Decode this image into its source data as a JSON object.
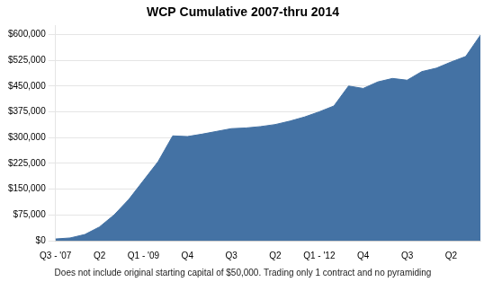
{
  "chart_data": {
    "type": "area",
    "title": "WCP Cumulative 2007-thru 2014",
    "subtitle": "Does not include original starting capital of $50,000. Trading only 1 contract and no pyramiding",
    "categories": [
      "Q3 - '07",
      null,
      null,
      "Q2",
      null,
      null,
      "Q1 - '09",
      null,
      null,
      "Q4",
      null,
      null,
      "Q3",
      null,
      null,
      "Q2",
      null,
      null,
      "Q1 - '12",
      null,
      null,
      "Q4",
      null,
      null,
      "Q3",
      null,
      null,
      "Q2",
      null,
      null
    ],
    "values": [
      5000,
      8000,
      18000,
      40000,
      75000,
      120000,
      175000,
      230000,
      305000,
      303000,
      310000,
      318000,
      326000,
      328000,
      332000,
      338000,
      348000,
      360000,
      375000,
      392000,
      450000,
      443000,
      462000,
      472000,
      467000,
      492000,
      502000,
      520000,
      536000,
      598000
    ],
    "color": "#4472a4",
    "ylim": [
      0,
      625000
    ],
    "yticks": [
      {
        "value": 0,
        "label": "$0"
      },
      {
        "value": 75000,
        "label": "$75,000"
      },
      {
        "value": 150000,
        "label": "$150,000"
      },
      {
        "value": 225000,
        "label": "$225,000"
      },
      {
        "value": 300000,
        "label": "$300,000"
      },
      {
        "value": 375000,
        "label": "$375,000"
      },
      {
        "value": 450000,
        "label": "$450,000"
      },
      {
        "value": 525000,
        "label": "$525,000"
      },
      {
        "value": 600000,
        "label": "$600,000"
      }
    ],
    "grid": true
  }
}
